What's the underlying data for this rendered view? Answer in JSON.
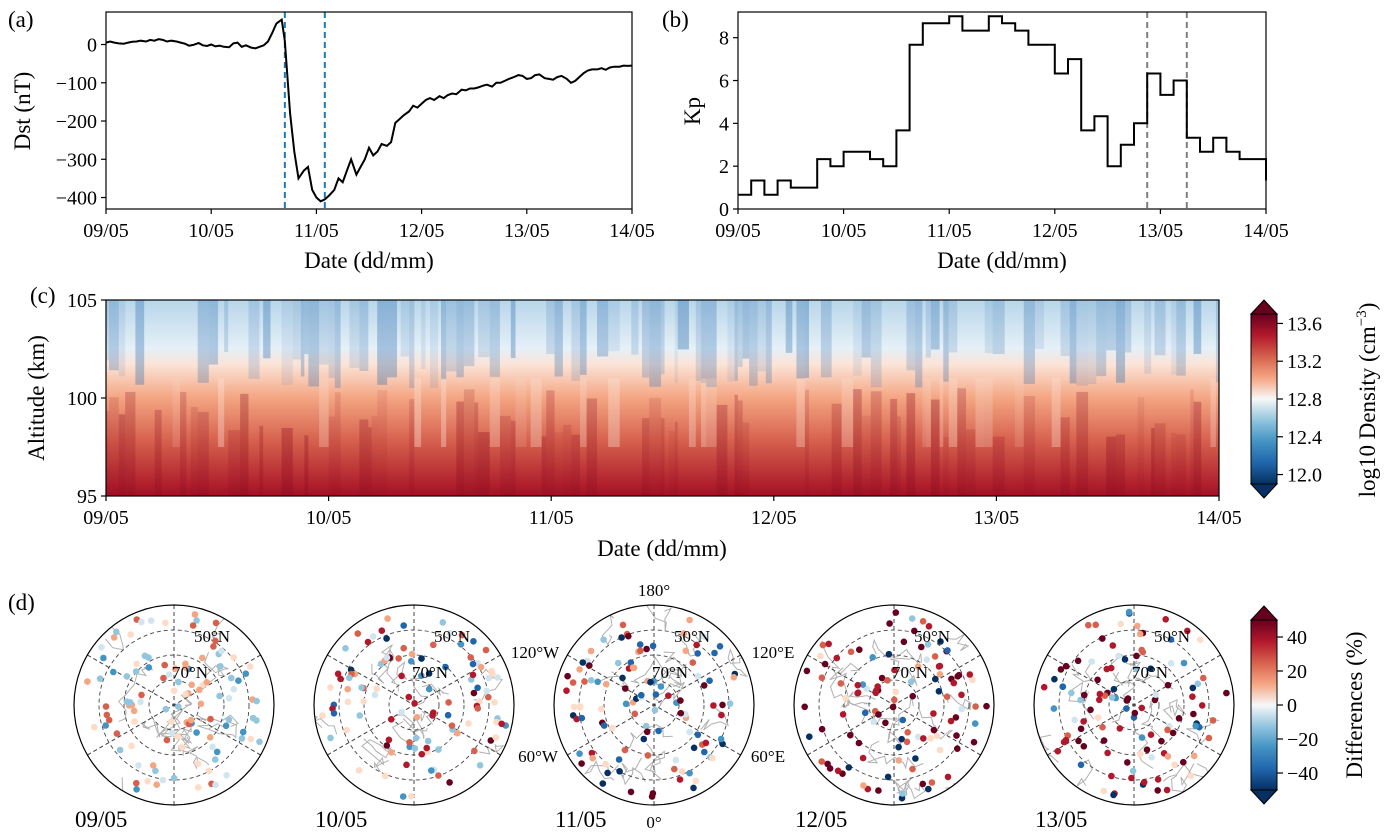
{
  "chart_data": [
    {
      "panel": "(a)",
      "type": "line",
      "xlabel": "Date (dd/mm)",
      "ylabel": "Dst (nT)",
      "x_ticks": [
        "09/05",
        "10/05",
        "11/05",
        "12/05",
        "13/05",
        "14/05"
      ],
      "y_ticks": [
        0,
        -100,
        -200,
        -300,
        -400
      ],
      "xlim_days": [
        0,
        5
      ],
      "ylim": [
        -430,
        85
      ],
      "vlines_days": [
        1.7,
        2.08
      ],
      "vline_color": "#1f77b4",
      "line_color": "#000000",
      "series": [
        {
          "x_days": [
            0,
            0.04,
            0.08,
            0.12,
            0.17,
            0.21,
            0.25,
            0.29,
            0.33,
            0.38,
            0.42,
            0.46,
            0.5,
            0.54,
            0.58,
            0.62,
            0.67,
            0.71,
            0.75,
            0.79,
            0.83,
            0.88,
            0.92,
            0.96,
            1.0,
            1.04,
            1.08,
            1.12,
            1.17,
            1.21,
            1.25,
            1.29,
            1.33,
            1.38,
            1.42,
            1.46,
            1.5,
            1.54,
            1.58,
            1.62,
            1.67,
            1.7,
            1.75,
            1.79,
            1.83,
            1.88,
            1.92,
            1.96,
            2.0,
            2.04,
            2.08,
            2.12,
            2.17,
            2.21,
            2.25,
            2.29,
            2.33,
            2.38,
            2.42,
            2.46,
            2.5,
            2.54,
            2.58,
            2.62,
            2.67,
            2.71,
            2.75,
            2.79,
            2.83,
            2.88,
            2.92,
            2.96,
            3.0,
            3.04,
            3.08,
            3.12,
            3.17,
            3.21,
            3.25,
            3.29,
            3.33,
            3.38,
            3.42,
            3.46,
            3.5,
            3.54,
            3.58,
            3.62,
            3.67,
            3.71,
            3.75,
            3.79,
            3.83,
            3.88,
            3.92,
            3.96,
            4.0,
            4.04,
            4.08,
            4.12,
            4.17,
            4.21,
            4.25,
            4.29,
            4.33,
            4.38,
            4.42,
            4.46,
            4.5,
            4.54,
            4.58,
            4.62,
            4.67,
            4.71,
            4.75,
            4.79,
            4.83,
            4.88,
            4.92,
            4.96,
            5.0
          ],
          "values": [
            5,
            8,
            5,
            3,
            2,
            5,
            7,
            8,
            10,
            8,
            12,
            10,
            14,
            12,
            8,
            10,
            8,
            5,
            2,
            -3,
            -1,
            4,
            -2,
            -4,
            0,
            -5,
            -3,
            -6,
            -7,
            3,
            5,
            -6,
            -2,
            -8,
            -10,
            -6,
            -2,
            8,
            30,
            55,
            65,
            10,
            -180,
            -280,
            -350,
            -330,
            -320,
            -380,
            -400,
            -410,
            -405,
            -395,
            -380,
            -350,
            -360,
            -330,
            -300,
            -340,
            -320,
            -300,
            -270,
            -290,
            -280,
            -260,
            -265,
            -255,
            -205,
            -195,
            -185,
            -175,
            -160,
            -165,
            -155,
            -145,
            -140,
            -145,
            -135,
            -140,
            -132,
            -128,
            -130,
            -118,
            -120,
            -115,
            -115,
            -112,
            -108,
            -105,
            -110,
            -100,
            -100,
            -95,
            -90,
            -85,
            -80,
            -82,
            -90,
            -88,
            -80,
            -78,
            -88,
            -90,
            -92,
            -85,
            -82,
            -90,
            -100,
            -95,
            -85,
            -75,
            -68,
            -65,
            -65,
            -62,
            -66,
            -60,
            -58,
            -58,
            -55,
            -56,
            -55
          ]
        }
      ]
    },
    {
      "panel": "(b)",
      "type": "line",
      "step": true,
      "xlabel": "Date (dd/mm)",
      "ylabel": "Kp",
      "x_ticks": [
        "09/05",
        "10/05",
        "11/05",
        "12/05",
        "13/05",
        "14/05"
      ],
      "y_ticks": [
        0,
        2,
        4,
        6,
        8
      ],
      "xlim_days": [
        0,
        5
      ],
      "ylim": [
        0,
        9.2
      ],
      "vlines_days": [
        3.875,
        4.25
      ],
      "vline_color": "#7f7f7f",
      "line_color": "#000000",
      "series": [
        {
          "x_days": [
            0,
            0.125,
            0.25,
            0.375,
            0.5,
            0.625,
            0.75,
            0.875,
            1.0,
            1.125,
            1.25,
            1.375,
            1.5,
            1.625,
            1.75,
            1.875,
            2.0,
            2.125,
            2.25,
            2.375,
            2.5,
            2.625,
            2.75,
            2.875,
            3.0,
            3.125,
            3.25,
            3.375,
            3.5,
            3.625,
            3.75,
            3.875,
            4.0,
            4.125,
            4.25,
            4.375,
            4.5,
            4.625,
            4.75,
            4.875
          ],
          "values": [
            0.67,
            1.33,
            0.67,
            1.33,
            1.0,
            1.0,
            2.33,
            2.0,
            2.67,
            2.67,
            2.33,
            2.0,
            3.67,
            7.67,
            8.67,
            8.67,
            9.0,
            8.33,
            8.33,
            9.0,
            8.67,
            8.33,
            7.67,
            7.67,
            6.33,
            7.0,
            3.67,
            4.33,
            2.0,
            3.0,
            4.0,
            6.33,
            5.33,
            6.0,
            3.33,
            2.67,
            3.33,
            2.67,
            2.33,
            2.33
          ],
          "end_value": 1.33
        }
      ]
    },
    {
      "panel": "(c)",
      "type": "heatmap",
      "xlabel": "Date (dd/mm)",
      "ylabel": "Altitude (km)",
      "x_ticks": [
        "09/05",
        "10/05",
        "11/05",
        "12/05",
        "13/05",
        "14/05"
      ],
      "y_ticks": [
        95,
        100,
        105
      ],
      "xlim_days": [
        0,
        5
      ],
      "ylim": [
        95,
        105
      ],
      "colorbar": {
        "label": "log10 Density (cm",
        "label_sup": "−3",
        "label_end": ")",
        "ticks": [
          12.0,
          12.4,
          12.8,
          13.2,
          13.6
        ],
        "range": [
          11.9,
          13.7
        ],
        "colormap": "RdBu_r",
        "extend": "both"
      },
      "description_profile": {
        "altitudes": [
          95,
          97,
          99,
          100,
          101,
          102,
          103,
          105
        ],
        "log10_density": [
          13.65,
          13.4,
          13.15,
          13.0,
          12.8,
          12.6,
          12.45,
          12.25
        ]
      }
    },
    {
      "panel": "(d)",
      "type": "scatter",
      "projection": "north-polar-stereographic",
      "maps": [
        {
          "label": "09/05",
          "variability": 0.5
        },
        {
          "label": "10/05",
          "variability": 0.8
        },
        {
          "label": "11/05",
          "variability": 1.0
        },
        {
          "label": "12/05",
          "variability": 1.1
        },
        {
          "label": "13/05",
          "variability": 1.0
        }
      ],
      "lat_labels": [
        "50°N",
        "70°N"
      ],
      "lon_labels": {
        "top": "180°",
        "bottom": "0°",
        "upper_left": "120°W",
        "lower_left": "60°W",
        "upper_right": "120°E",
        "lower_right": "60°E"
      },
      "colorbar": {
        "label": "Differences (%)",
        "ticks": [
          -40,
          -20,
          0,
          20,
          40
        ],
        "range": [
          -50,
          50
        ],
        "colormap": "RdBu_r",
        "extend": "both"
      }
    }
  ],
  "colors": {
    "vline_a": "#1f77b4",
    "vline_b": "#7f7f7f",
    "coast": "#b0b0b0",
    "grid": "#444444"
  }
}
